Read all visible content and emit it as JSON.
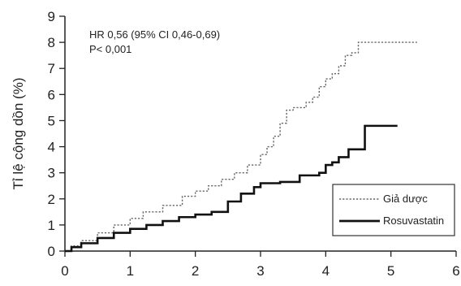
{
  "chart_data": {
    "type": "line",
    "title": "",
    "xlabel": "",
    "ylabel": "Tỉ lệ cộng dồn (%)",
    "xlim": [
      0,
      6
    ],
    "ylim": [
      0,
      9
    ],
    "x_ticks": [
      0,
      1,
      2,
      3,
      4,
      5,
      6
    ],
    "y_ticks": [
      0,
      1,
      2,
      3,
      4,
      5,
      6,
      7,
      8,
      9
    ],
    "grid": false,
    "legend_position": "bottom-right",
    "annotations": [
      "HR 0,56 (95% CI 0,46-0,69)",
      "P< 0,001"
    ],
    "series": [
      {
        "name": "Giả dược",
        "style": "dotted",
        "color": "#666666",
        "x": [
          0,
          0.1,
          0.25,
          0.5,
          0.75,
          1.0,
          1.2,
          1.5,
          1.8,
          2.0,
          2.2,
          2.4,
          2.6,
          2.8,
          3.0,
          3.1,
          3.2,
          3.3,
          3.4,
          3.5,
          3.7,
          3.8,
          3.9,
          4.0,
          4.1,
          4.2,
          4.3,
          4.4,
          4.5,
          5.4
        ],
        "y": [
          0,
          0.2,
          0.4,
          0.7,
          1.0,
          1.25,
          1.5,
          1.75,
          2.1,
          2.3,
          2.5,
          2.75,
          3.0,
          3.3,
          3.7,
          4.0,
          4.4,
          4.9,
          5.4,
          5.5,
          5.7,
          5.9,
          6.3,
          6.6,
          6.8,
          7.1,
          7.5,
          7.6,
          8.0,
          8.0
        ]
      },
      {
        "name": "Rosuvastatin",
        "style": "solid",
        "color": "#111111",
        "x": [
          0,
          0.1,
          0.25,
          0.5,
          0.75,
          1.0,
          1.25,
          1.5,
          1.75,
          2.0,
          2.25,
          2.5,
          2.7,
          2.9,
          3.0,
          3.3,
          3.6,
          3.9,
          4.0,
          4.1,
          4.2,
          4.35,
          4.6,
          5.1
        ],
        "y": [
          0,
          0.15,
          0.3,
          0.5,
          0.7,
          0.85,
          1.0,
          1.15,
          1.3,
          1.4,
          1.5,
          1.9,
          2.2,
          2.45,
          2.6,
          2.65,
          2.9,
          3.0,
          3.3,
          3.4,
          3.6,
          3.9,
          4.8,
          4.8
        ]
      }
    ]
  }
}
